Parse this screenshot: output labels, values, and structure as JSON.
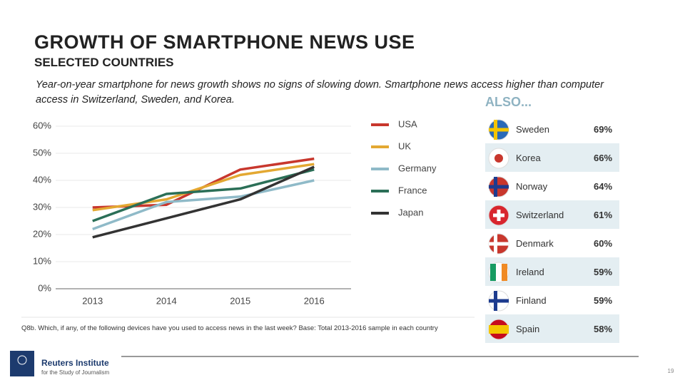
{
  "header": {
    "title": "GROWTH OF SMARTPHONE NEWS USE",
    "subtitle": "SELECTED COUNTRIES",
    "description": "Year-on-year smartphone for news growth shows no signs of slowing down. Smartphone news access higher than computer access in Switzerland, Sweden, and Korea."
  },
  "chart_data": {
    "type": "line",
    "categories": [
      "2013",
      "2014",
      "2015",
      "2016"
    ],
    "series": [
      {
        "name": "USA",
        "color": "#c8372d",
        "values": [
          30,
          31,
          44,
          48
        ]
      },
      {
        "name": "UK",
        "color": "#e3a832",
        "values": [
          29,
          33,
          42,
          46
        ]
      },
      {
        "name": "Germany",
        "color": "#8fbac8",
        "values": [
          22,
          32,
          34,
          40
        ]
      },
      {
        "name": "France",
        "color": "#2b6f57",
        "values": [
          25,
          35,
          37,
          44
        ]
      },
      {
        "name": "Japan",
        "color": "#333333",
        "values": [
          19,
          26,
          33,
          45
        ]
      }
    ],
    "ylim": [
      0,
      60
    ],
    "yticks": [
      {
        "value": 0,
        "label": "0%"
      },
      {
        "value": 10,
        "label": "10%"
      },
      {
        "value": 20,
        "label": "20%"
      },
      {
        "value": 30,
        "label": "30%"
      },
      {
        "value": 40,
        "label": "40%"
      },
      {
        "value": 50,
        "label": "50%"
      },
      {
        "value": 60,
        "label": "60%"
      }
    ],
    "grid": true
  },
  "footnote": "Q8b. Which, if any, of the following devices have you used to access news in the last week? Base: Total 2013-2016 sample in each country",
  "also": {
    "title": "ALSO...",
    "rows": [
      [
        "Sweden",
        "69%"
      ],
      [
        "Korea",
        "66%"
      ],
      [
        "Norway",
        "64%"
      ],
      [
        "Switzerland",
        "61%"
      ],
      [
        "Denmark",
        "60%"
      ],
      [
        "Ireland",
        "59%"
      ],
      [
        "Finland",
        "59%"
      ],
      [
        "Spain",
        "58%"
      ]
    ]
  },
  "footer": {
    "org": "Reuters Institute",
    "org_sub": "for the Study of Journalism",
    "page": "19"
  }
}
